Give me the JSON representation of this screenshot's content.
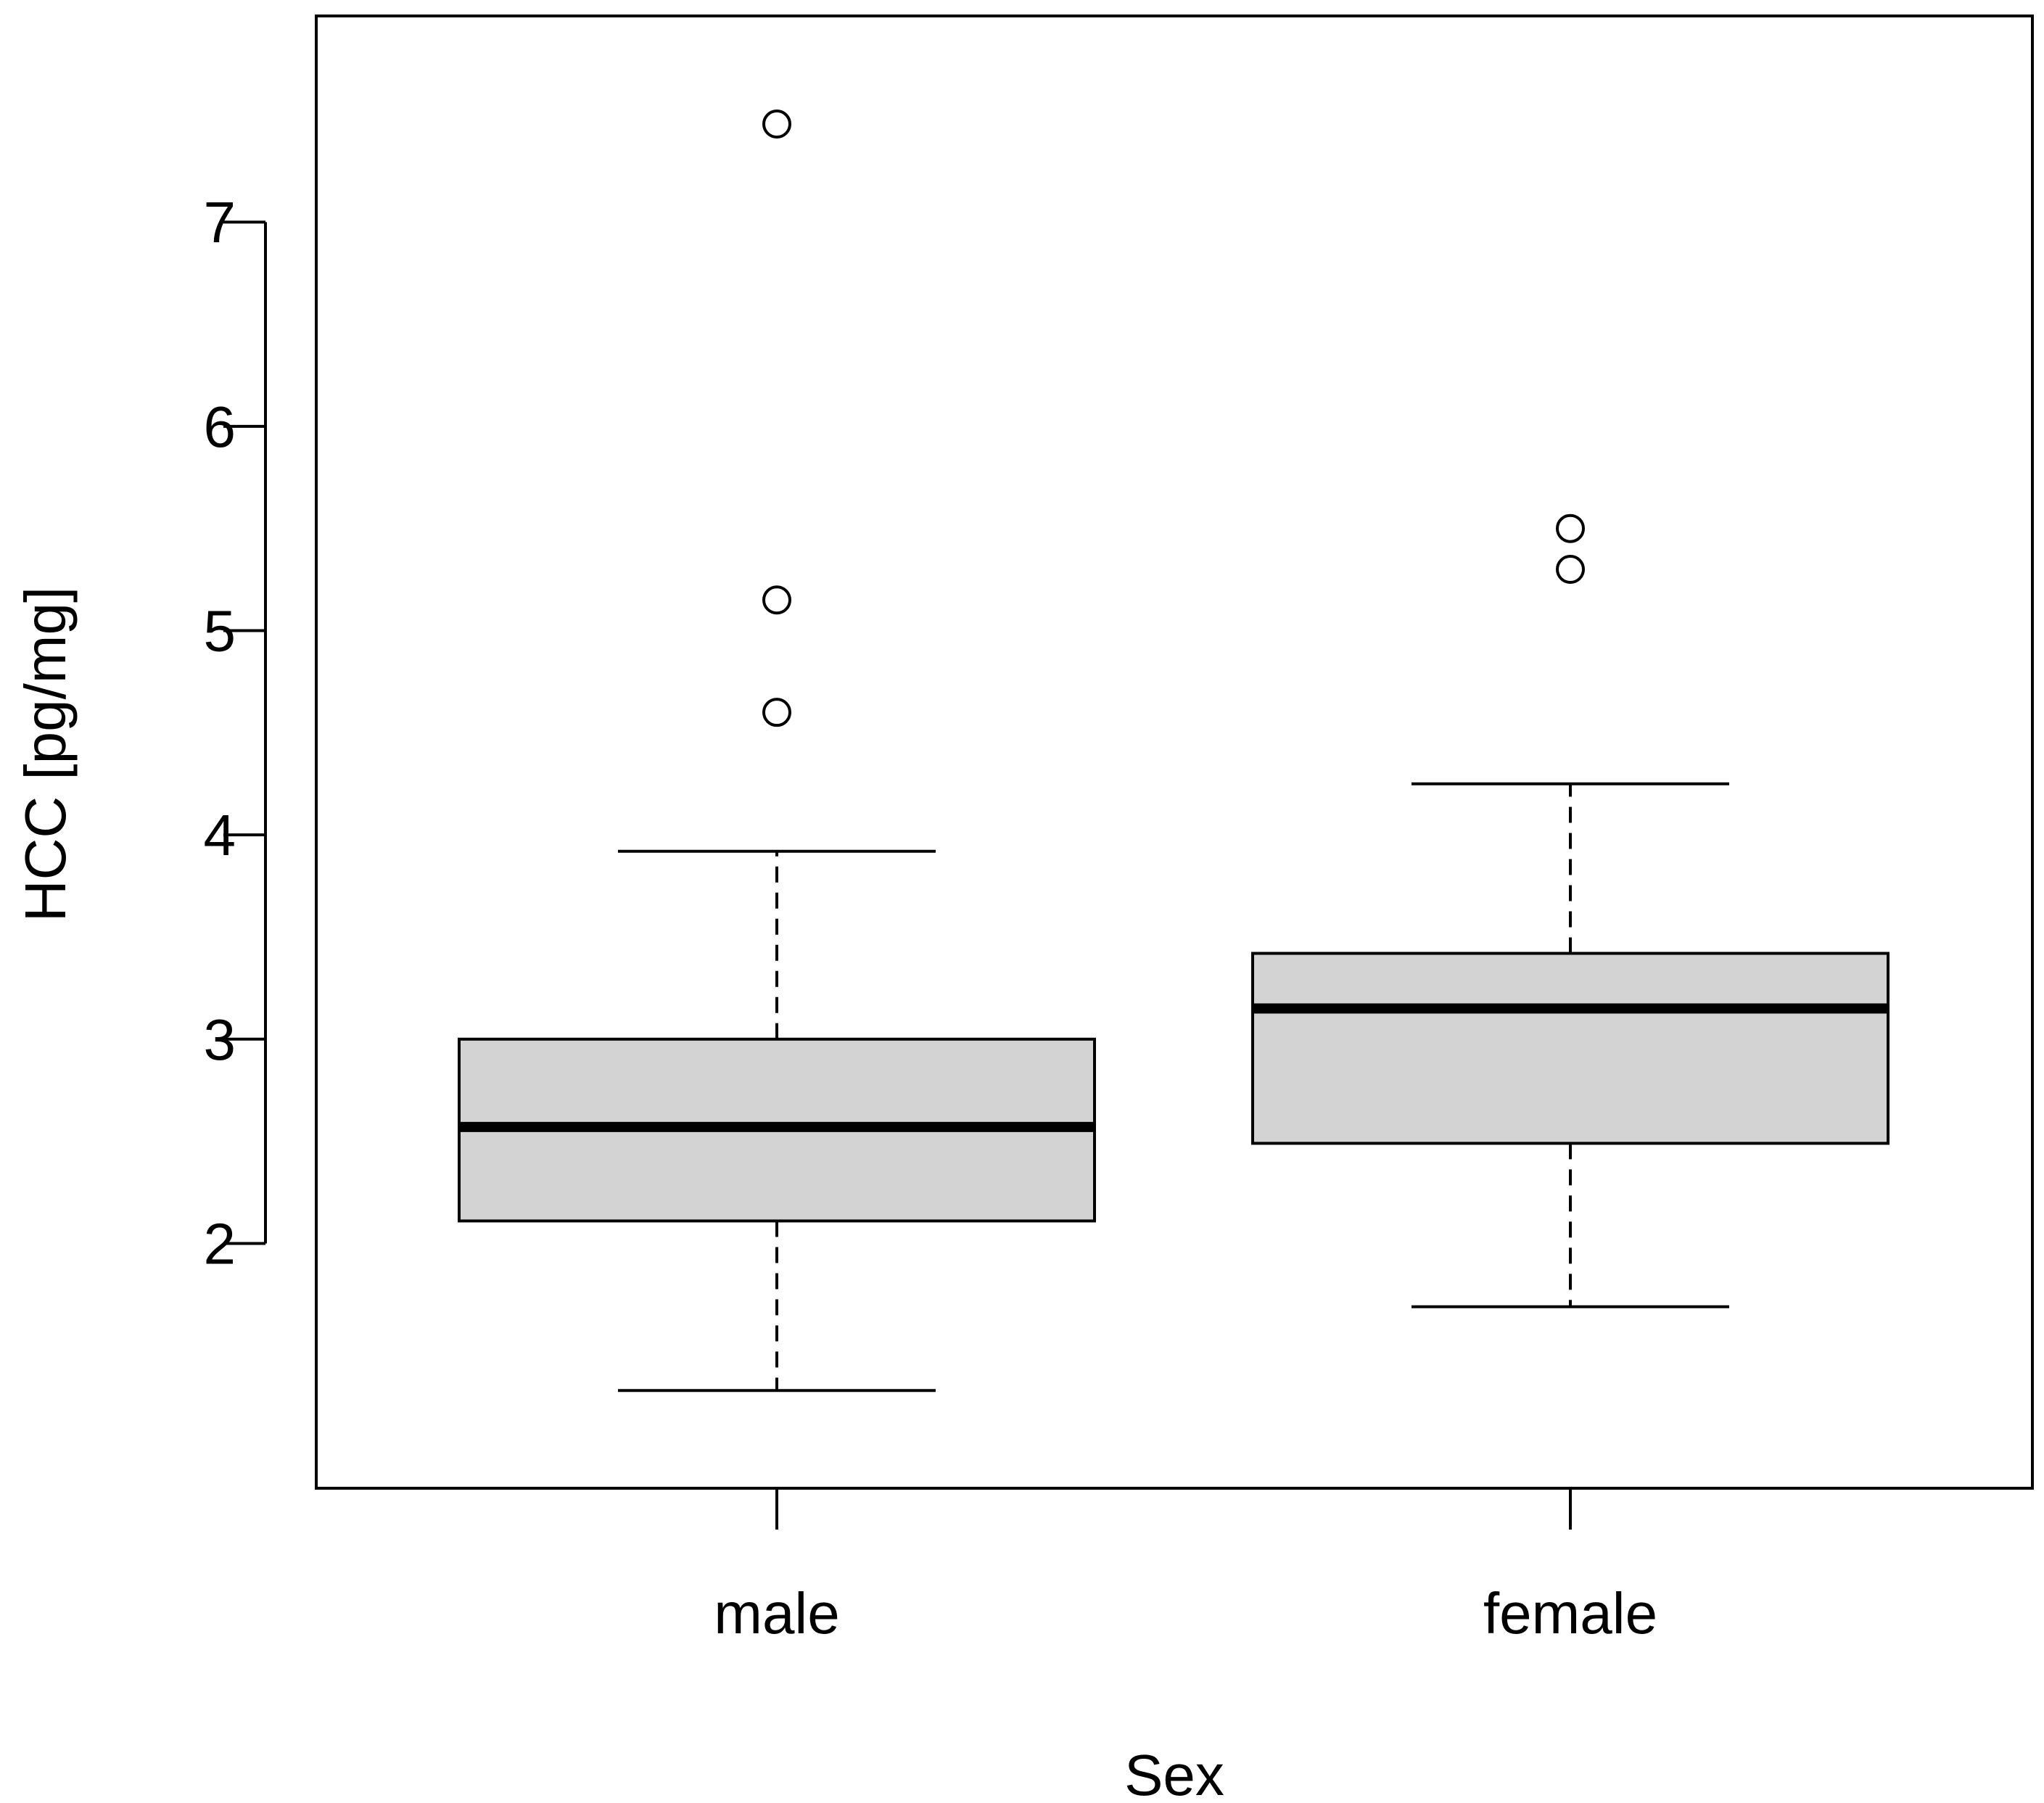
{
  "chart_data": {
    "type": "boxplot",
    "title": "",
    "xlabel": "Sex",
    "ylabel": "HCC [pg/mg]",
    "ylim": [
      1.05,
      7.75
    ],
    "yticks": [
      2,
      3,
      4,
      5,
      6,
      7
    ],
    "ytick_labels": [
      "2",
      "3",
      "4",
      "5",
      "6",
      "7"
    ],
    "grid": false,
    "box_fill": "#d3d3d3",
    "line_color": "#000000",
    "categories": [
      "male",
      "female"
    ],
    "boxes": [
      {
        "label": "male",
        "whisker_low": 1.28,
        "q1": 2.11,
        "median": 2.57,
        "q3": 3.0,
        "whisker_high": 3.92,
        "outliers": [
          4.6,
          5.15,
          7.48
        ]
      },
      {
        "label": "female",
        "whisker_low": 1.69,
        "q1": 2.49,
        "median": 3.15,
        "q3": 3.42,
        "whisker_high": 4.25,
        "outliers": [
          5.3,
          5.5
        ]
      }
    ]
  }
}
